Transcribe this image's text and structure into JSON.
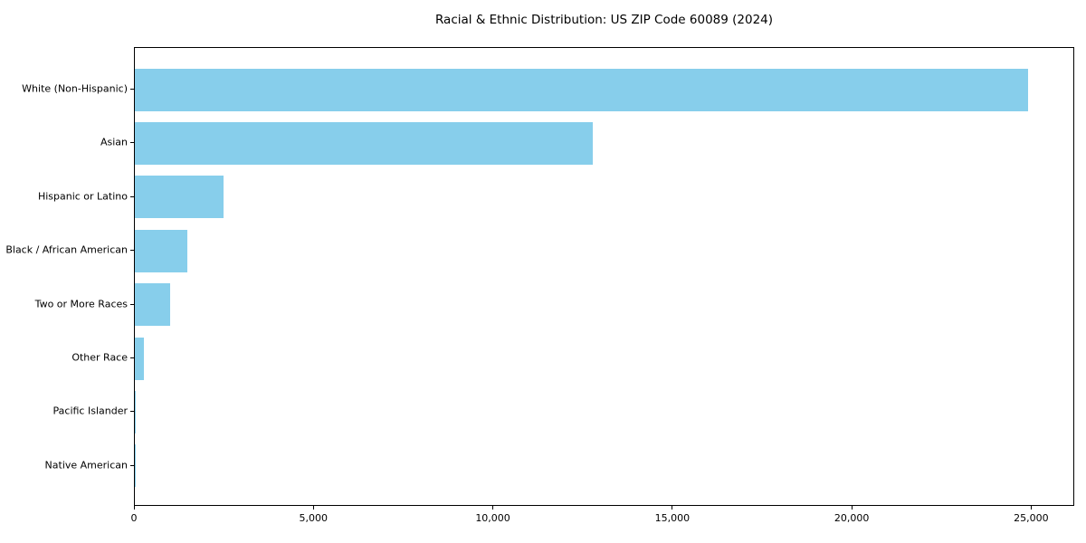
{
  "chart_data": {
    "type": "bar",
    "orientation": "horizontal",
    "title": "Racial & Ethnic Distribution: US ZIP Code 60089 (2024)",
    "categories": [
      "White (Non-Hispanic)",
      "Asian",
      "Hispanic or Latino",
      "Black / African American",
      "Two or More Races",
      "Other Race",
      "Pacific Islander",
      "Native American"
    ],
    "values": [
      24900,
      12750,
      2460,
      1450,
      980,
      240,
      25,
      10
    ],
    "xlabel": "",
    "ylabel": "",
    "xlim": [
      0,
      26200
    ],
    "x_ticks": [
      0,
      5000,
      10000,
      15000,
      20000,
      25000
    ],
    "x_tick_labels": [
      "0",
      "5,000",
      "10,000",
      "15,000",
      "20,000",
      "25,000"
    ],
    "bar_color": "#87ceeb",
    "background_color": "#ffffff",
    "spine_color": "#000000",
    "grid": false,
    "legend": null
  }
}
